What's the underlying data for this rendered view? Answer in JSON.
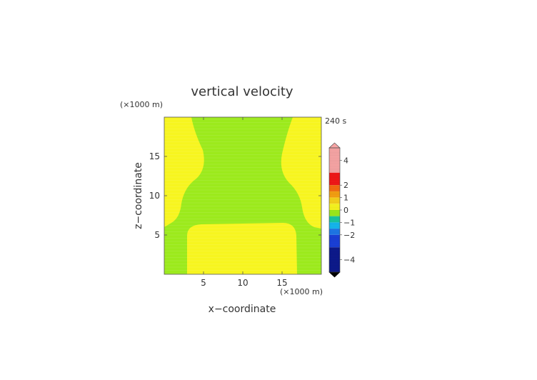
{
  "chart_data": {
    "type": "heatmap",
    "title": "vertical velocity",
    "xlabel": "x−coordinate",
    "ylabel": "z−coordinate",
    "x_unit": "(×1000 m)",
    "y_unit": "(×1000 m)",
    "time_label": "240 s",
    "xlim": [
      0,
      20
    ],
    "ylim": [
      0,
      20
    ],
    "x_ticks": [
      5,
      10,
      15
    ],
    "y_ticks": [
      5,
      10,
      15
    ],
    "x_tick_labels": [
      "5",
      "10",
      "15"
    ],
    "y_tick_labels": [
      "5",
      "10",
      "15"
    ],
    "regions": [
      {
        "name": "upper-yellow",
        "value": 0.5,
        "color": "#f7f51f"
      },
      {
        "name": "green-band",
        "value": 0,
        "color": "#9cea1c"
      },
      {
        "name": "lower-yellow",
        "value": 0.5,
        "color": "#f7f51f"
      }
    ],
    "colorbar": {
      "range": [
        -5,
        5
      ],
      "ticks": [
        4,
        2,
        1,
        0,
        -1,
        -2,
        -4
      ],
      "tick_labels": [
        "4",
        "2",
        "1",
        "0",
        "−1",
        "−2",
        "−4"
      ],
      "levels": [
        {
          "from": 3,
          "to": 5,
          "color": "#f7a5a5"
        },
        {
          "from": 2,
          "to": 3,
          "color": "#f21818"
        },
        {
          "from": 1.5,
          "to": 2,
          "color": "#f56b10"
        },
        {
          "from": 1,
          "to": 1.5,
          "color": "#f5a012"
        },
        {
          "from": 0.5,
          "to": 1,
          "color": "#f7d21c"
        },
        {
          "from": 0,
          "to": 0.5,
          "color": "#f7f51f"
        },
        {
          "from": -0.5,
          "to": 0,
          "color": "#9cea1c"
        },
        {
          "from": -1,
          "to": -0.5,
          "color": "#19c6a0"
        },
        {
          "from": -1.5,
          "to": -1,
          "color": "#15b8f0"
        },
        {
          "from": -2,
          "to": -1.5,
          "color": "#1e78e8"
        },
        {
          "from": -3,
          "to": -2,
          "color": "#1a40d8"
        },
        {
          "from": -5,
          "to": -3,
          "color": "#0d1a8c"
        }
      ]
    }
  }
}
